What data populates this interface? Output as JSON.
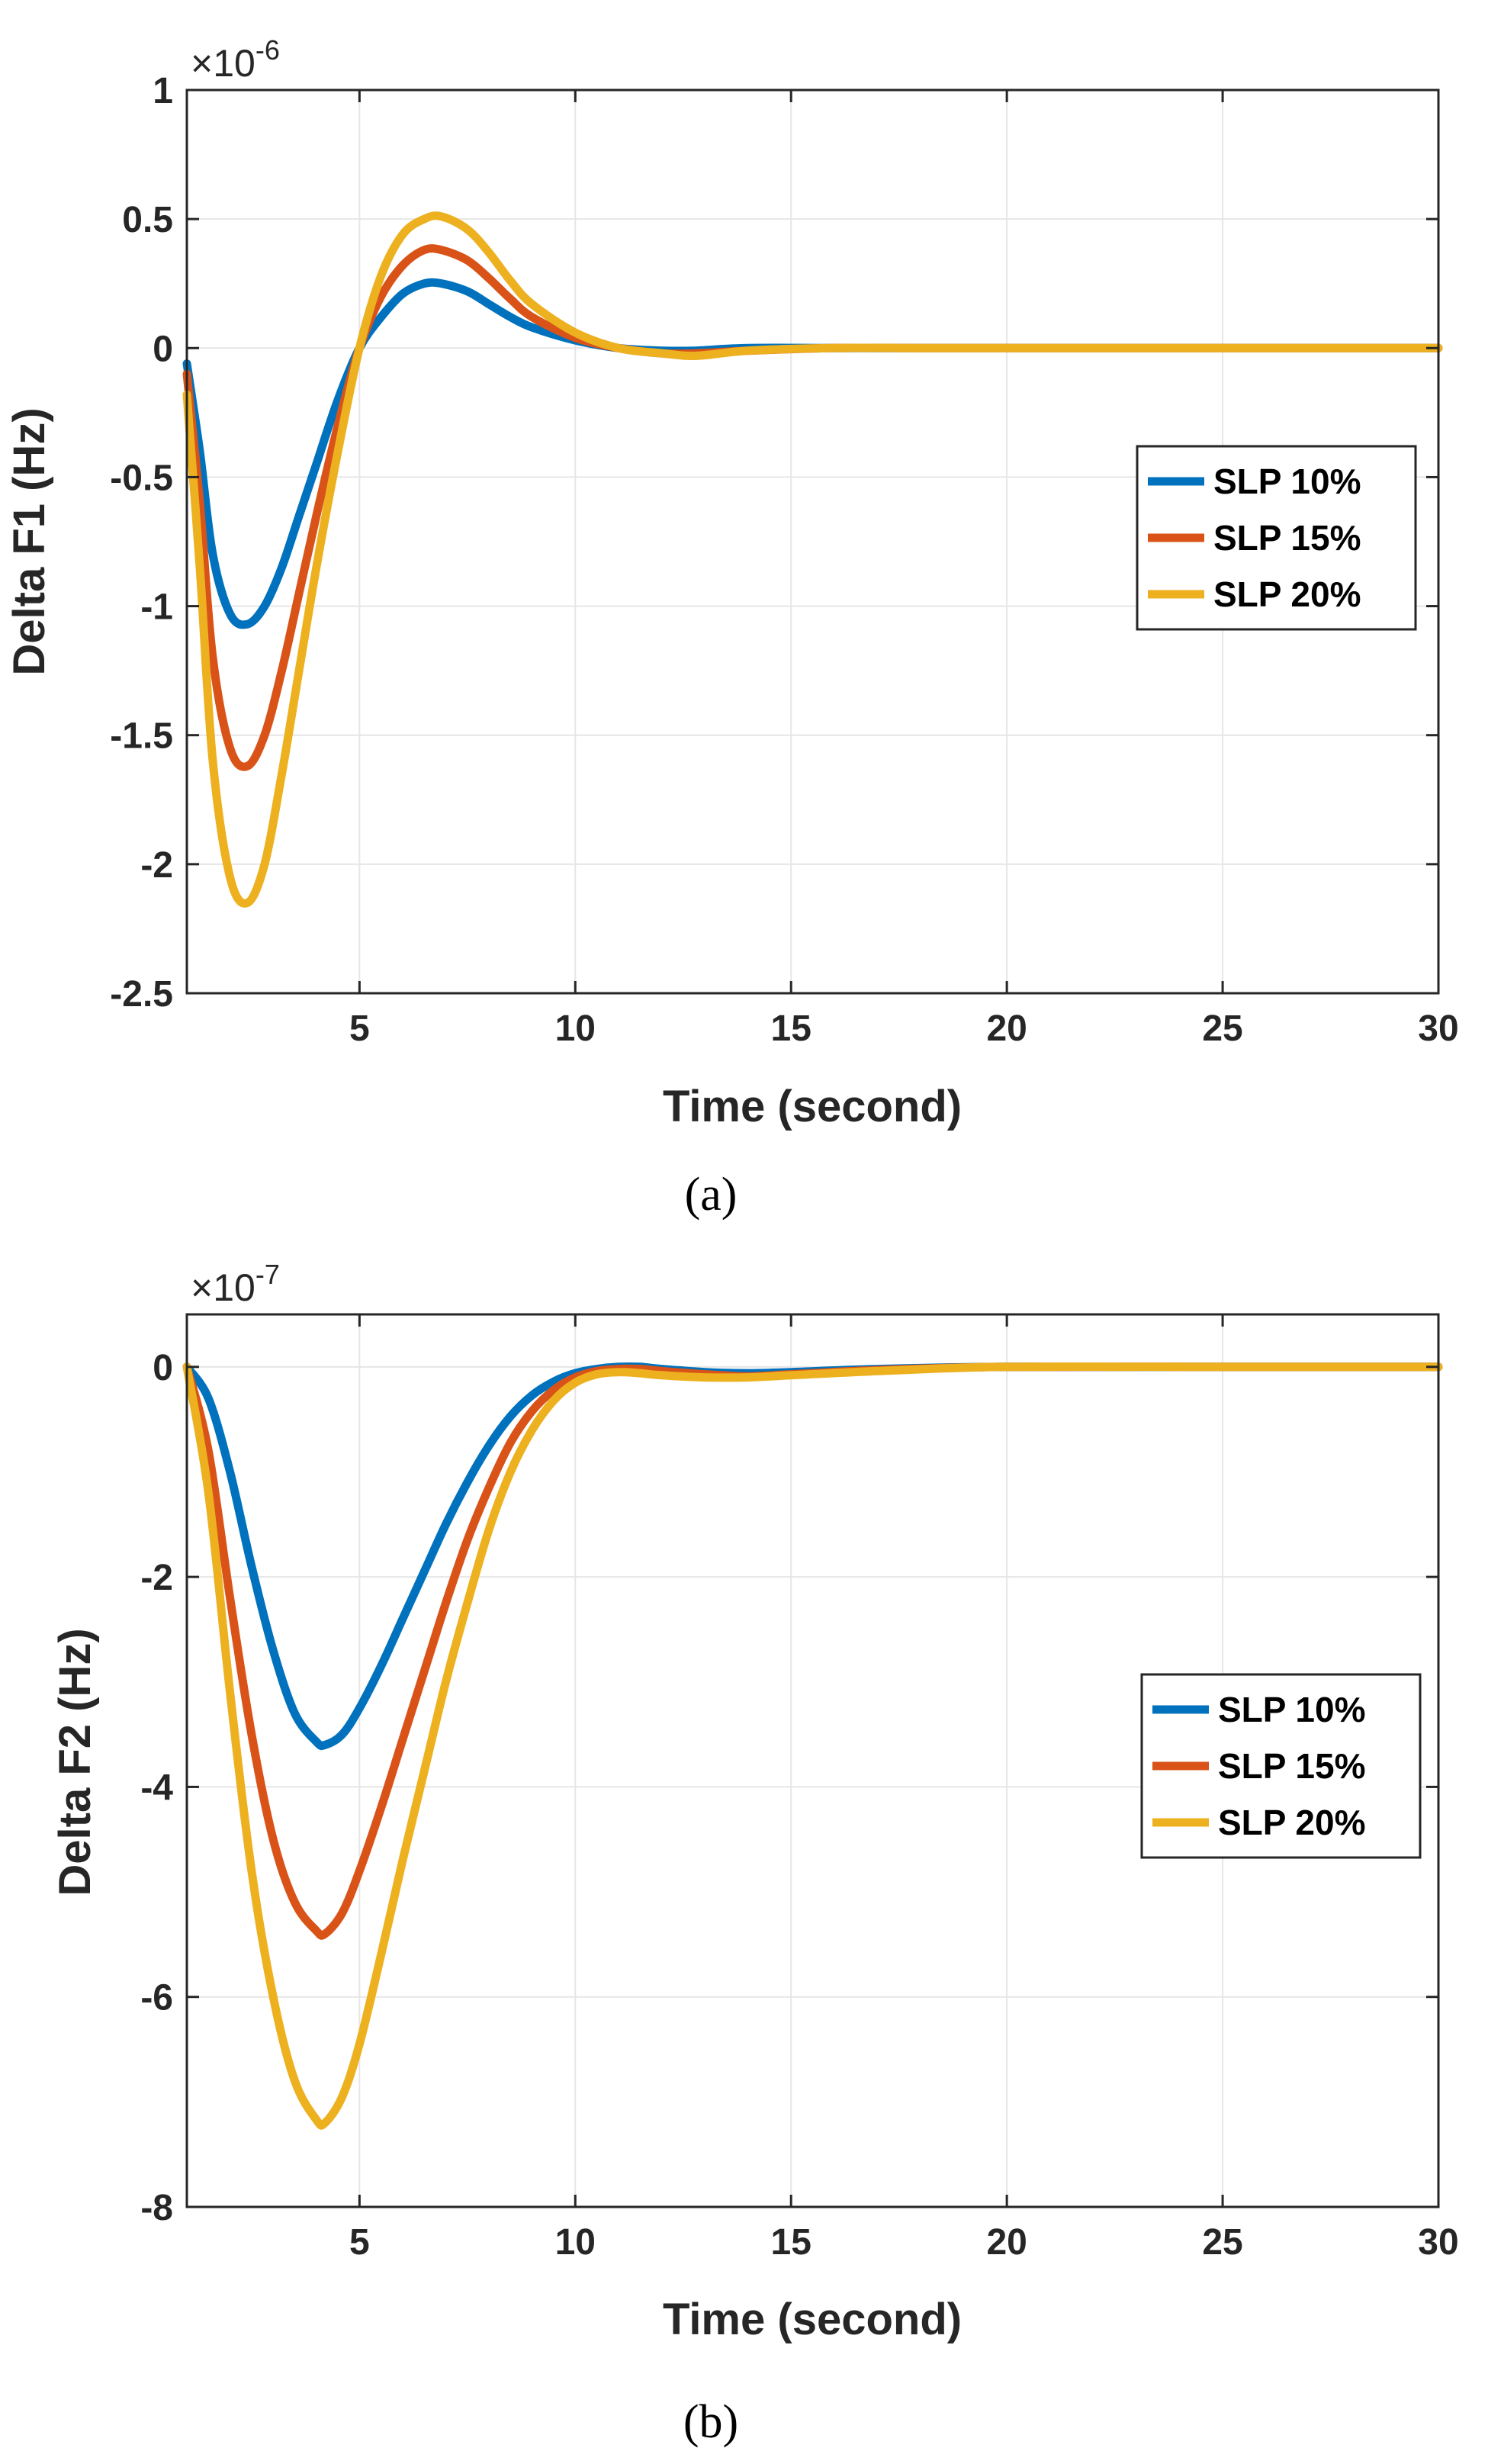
{
  "figure": {
    "captions": [
      "(a)",
      "(b)"
    ]
  },
  "chart_data": [
    {
      "type": "line",
      "title": "",
      "xlabel": "Time (second)",
      "ylabel": "Delta F1 (Hz)",
      "exponent_label": "×10^-6",
      "exponent_base": "×10",
      "exponent_power": "-6",
      "xlim": [
        1,
        30
      ],
      "ylim": [
        -2.5,
        1
      ],
      "x_ticks": [
        5,
        10,
        15,
        20,
        25,
        30
      ],
      "x_tick_labels": [
        "5",
        "10",
        "15",
        "20",
        "25",
        "30"
      ],
      "y_ticks": [
        1,
        0.5,
        0,
        -0.5,
        -1,
        -1.5,
        -2,
        -2.5
      ],
      "y_tick_labels": [
        "1",
        "0.5",
        "0",
        "-0.5",
        "-1",
        "-1.5",
        "-2",
        "-2.5"
      ],
      "grid": true,
      "legend_position": "center-right",
      "series": [
        {
          "name": "SLP 10%",
          "color": "#0072BD",
          "x": [
            1,
            1.3,
            1.6,
            2,
            2.4,
            2.8,
            3.2,
            3.6,
            4,
            4.5,
            5,
            5.5,
            6,
            6.5,
            6.9,
            7.5,
            8,
            8.5,
            9,
            10,
            11,
            12,
            12.8,
            14,
            16,
            18,
            20,
            25,
            30
          ],
          "y": [
            -0.06,
            -0.4,
            -0.8,
            -1.03,
            -1.07,
            -1.0,
            -0.85,
            -0.65,
            -0.45,
            -0.2,
            0.0,
            0.12,
            0.21,
            0.25,
            0.25,
            0.22,
            0.17,
            0.12,
            0.08,
            0.03,
            0.0,
            -0.01,
            -0.01,
            0.0,
            0.0,
            0.0,
            0.0,
            0.0,
            0.0
          ]
        },
        {
          "name": "SLP 15%",
          "color": "#D95319",
          "x": [
            1,
            1.3,
            1.6,
            2,
            2.4,
            2.8,
            3.2,
            3.6,
            4,
            4.5,
            5,
            5.5,
            6,
            6.5,
            6.9,
            7.5,
            8,
            8.5,
            9,
            10,
            11,
            12,
            12.8,
            14,
            16,
            18,
            20,
            25,
            30
          ],
          "y": [
            -0.1,
            -0.6,
            -1.2,
            -1.55,
            -1.62,
            -1.5,
            -1.25,
            -0.95,
            -0.65,
            -0.3,
            0.0,
            0.2,
            0.32,
            0.38,
            0.38,
            0.34,
            0.27,
            0.19,
            0.12,
            0.04,
            0.0,
            -0.02,
            -0.02,
            -0.01,
            0.0,
            0.0,
            0.0,
            0.0,
            0.0
          ]
        },
        {
          "name": "SLP 20%",
          "color": "#EDB120",
          "x": [
            1,
            1.3,
            1.6,
            2,
            2.4,
            2.8,
            3.2,
            3.6,
            4,
            4.5,
            5,
            5.5,
            6,
            6.5,
            6.9,
            7.5,
            8,
            8.5,
            9,
            10,
            11,
            12,
            12.8,
            14,
            16,
            18,
            20,
            25,
            30
          ],
          "y": [
            -0.18,
            -0.85,
            -1.6,
            -2.05,
            -2.15,
            -2.0,
            -1.65,
            -1.25,
            -0.85,
            -0.4,
            0.0,
            0.28,
            0.44,
            0.5,
            0.51,
            0.46,
            0.37,
            0.26,
            0.17,
            0.06,
            0.0,
            -0.02,
            -0.03,
            -0.01,
            0.0,
            0.0,
            0.0,
            0.0,
            0.0
          ]
        }
      ]
    },
    {
      "type": "line",
      "title": "",
      "xlabel": "Time (second)",
      "ylabel": "Delta F2 (Hz)",
      "exponent_label": "×10^-7",
      "exponent_base": "×10",
      "exponent_power": "-7",
      "xlim": [
        1,
        30
      ],
      "ylim": [
        -8,
        0.5
      ],
      "x_ticks": [
        5,
        10,
        15,
        20,
        25,
        30
      ],
      "x_tick_labels": [
        "5",
        "10",
        "15",
        "20",
        "25",
        "30"
      ],
      "y_ticks": [
        0,
        -2,
        -4,
        -6,
        -8
      ],
      "y_tick_labels": [
        "0",
        "-2",
        "-4",
        "-6",
        "-8"
      ],
      "grid": true,
      "legend_position": "center-right",
      "series": [
        {
          "name": "SLP 10%",
          "color": "#0072BD",
          "x": [
            1,
            1.5,
            2,
            2.5,
            3,
            3.5,
            4,
            4.2,
            4.6,
            5,
            5.5,
            6,
            6.5,
            7,
            7.5,
            8,
            8.5,
            9,
            9.5,
            10,
            10.5,
            11,
            11.5,
            12,
            13,
            14,
            15,
            17,
            20,
            25,
            30
          ],
          "y": [
            0.0,
            -0.3,
            -1.0,
            -1.9,
            -2.7,
            -3.3,
            -3.57,
            -3.6,
            -3.5,
            -3.25,
            -2.85,
            -2.4,
            -1.95,
            -1.5,
            -1.1,
            -0.75,
            -0.47,
            -0.27,
            -0.14,
            -0.06,
            -0.02,
            0.0,
            0.0,
            -0.02,
            -0.05,
            -0.06,
            -0.05,
            -0.02,
            0.0,
            0.0,
            0.0
          ]
        },
        {
          "name": "SLP 15%",
          "color": "#D95319",
          "x": [
            1,
            1.5,
            2,
            2.5,
            3,
            3.5,
            4,
            4.2,
            4.6,
            5,
            5.5,
            6,
            6.5,
            7,
            7.5,
            8,
            8.5,
            9,
            9.5,
            10,
            10.5,
            11,
            11.5,
            12,
            13,
            14,
            15,
            17,
            20,
            25,
            30
          ],
          "y": [
            0.0,
            -0.8,
            -2.2,
            -3.5,
            -4.5,
            -5.1,
            -5.37,
            -5.4,
            -5.2,
            -4.8,
            -4.2,
            -3.55,
            -2.9,
            -2.25,
            -1.65,
            -1.15,
            -0.72,
            -0.42,
            -0.22,
            -0.1,
            -0.04,
            -0.02,
            -0.02,
            -0.04,
            -0.07,
            -0.09,
            -0.07,
            -0.03,
            0.0,
            0.0,
            0.0
          ]
        },
        {
          "name": "SLP 20%",
          "color": "#EDB120",
          "x": [
            1,
            1.5,
            2,
            2.5,
            3,
            3.5,
            4,
            4.2,
            4.6,
            5,
            5.5,
            6,
            6.5,
            7,
            7.5,
            8,
            8.5,
            9,
            9.5,
            10,
            10.5,
            11,
            11.5,
            12,
            13,
            14,
            15,
            17,
            20,
            25,
            30
          ],
          "y": [
            0.0,
            -1.2,
            -3.1,
            -4.8,
            -6.0,
            -6.8,
            -7.17,
            -7.2,
            -6.95,
            -6.45,
            -5.6,
            -4.7,
            -3.85,
            -3.0,
            -2.25,
            -1.55,
            -1.0,
            -0.6,
            -0.32,
            -0.15,
            -0.07,
            -0.05,
            -0.06,
            -0.08,
            -0.1,
            -0.1,
            -0.08,
            -0.04,
            0.0,
            0.0,
            0.0
          ]
        }
      ]
    }
  ]
}
